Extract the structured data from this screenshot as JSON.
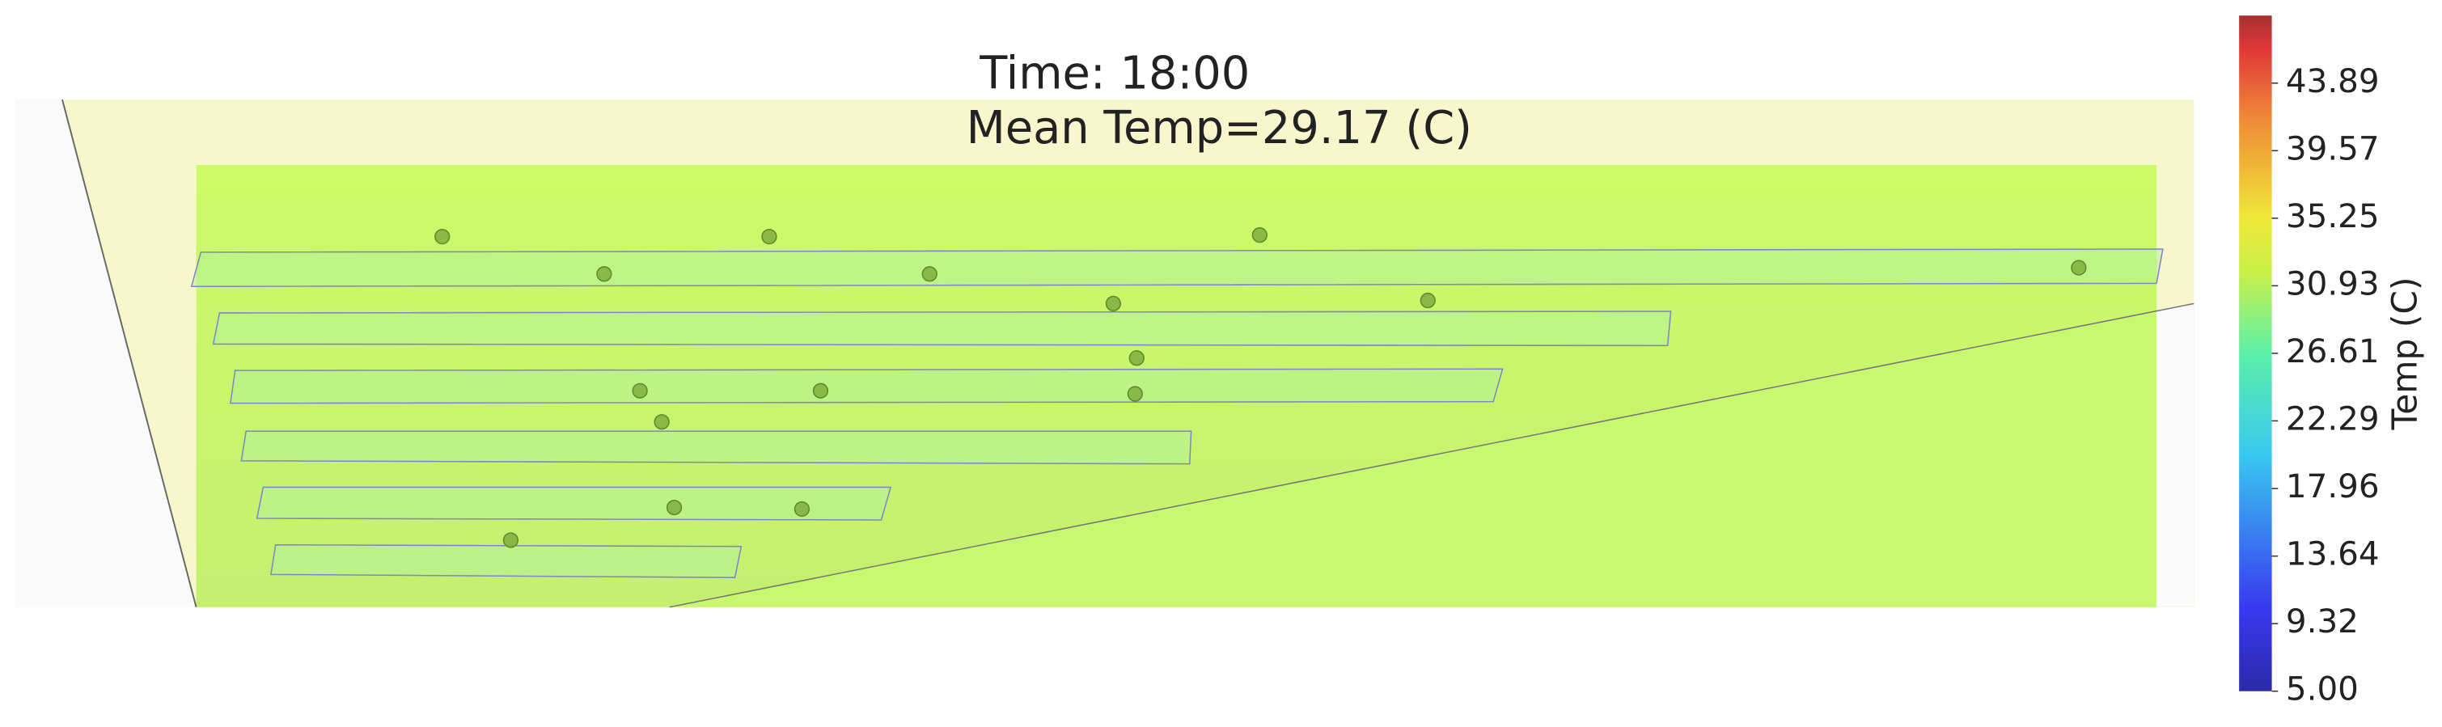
{
  "chart_data": {
    "type": "heatmap",
    "title": "Time: 18:00",
    "subtitle": "Mean Temp=29.17 (C)",
    "colorbar": {
      "label": "Temp (C)",
      "lim": [
        5,
        48.21
      ],
      "ticks": [
        {
          "value": 5,
          "label": "5.00"
        },
        {
          "value": 9.32,
          "label": "9.32"
        },
        {
          "value": 13.64,
          "label": "13.64"
        },
        {
          "value": 17.96,
          "label": "17.96"
        },
        {
          "value": 22.29,
          "label": "22.29"
        },
        {
          "value": 26.61,
          "label": "26.61"
        },
        {
          "value": 30.93,
          "label": "30.93"
        },
        {
          "value": 35.25,
          "label": "35.25"
        },
        {
          "value": 39.57,
          "label": "39.57"
        },
        {
          "value": 43.89,
          "label": "43.89"
        }
      ]
    }
  }
}
